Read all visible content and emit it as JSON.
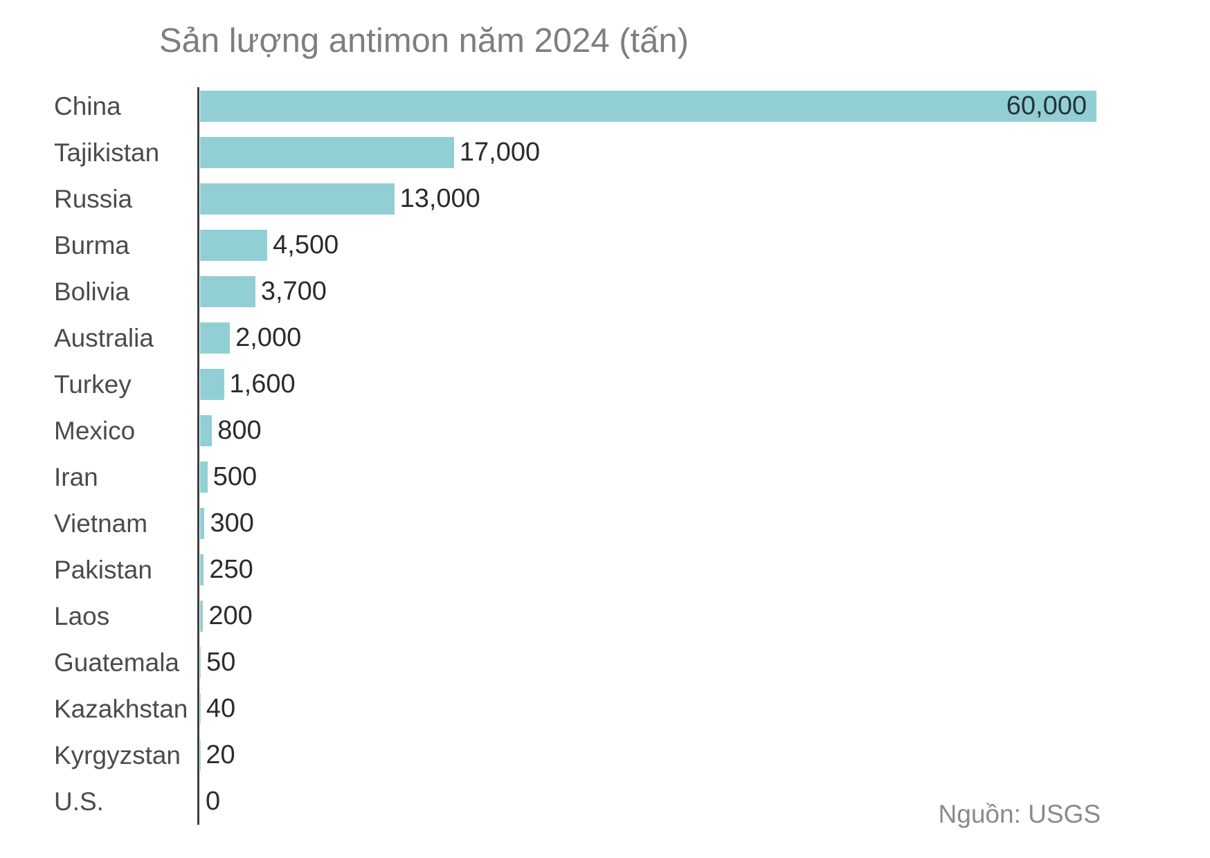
{
  "chart_data": {
    "type": "bar",
    "orientation": "horizontal",
    "title": "Sản lượng antimon năm 2024 (tấn)",
    "unit": "tấn",
    "categories": [
      "China",
      "Tajikistan",
      "Russia",
      "Burma",
      "Bolivia",
      "Australia",
      "Turkey",
      "Mexico",
      "Iran",
      "Vietnam",
      "Pakistan",
      "Laos",
      "Guatemala",
      "Kazakhstan",
      "Kyrgyzstan",
      "U.S."
    ],
    "values": [
      60000,
      17000,
      13000,
      4500,
      3700,
      2000,
      1600,
      800,
      500,
      300,
      250,
      200,
      50,
      40,
      20,
      0
    ],
    "value_labels": [
      "60,000",
      "17,000",
      "13,000",
      "4,500",
      "3,700",
      "2,000",
      "1,600",
      "800",
      "500",
      "300",
      "250",
      "200",
      "50",
      "40",
      "20",
      "0"
    ],
    "xlim": [
      0,
      60000
    ],
    "grid": false,
    "legend": false,
    "source_label": "Nguồn: USGS"
  },
  "colors": {
    "background": "#ffffff",
    "bar": "#92cfd4",
    "title": "#7e7e7e",
    "category_label": "#4b4b4b",
    "value_label": "#2b2b2b",
    "value_label_inside": "#24333a",
    "axis": "#404040",
    "source": "#8a8a8a"
  }
}
